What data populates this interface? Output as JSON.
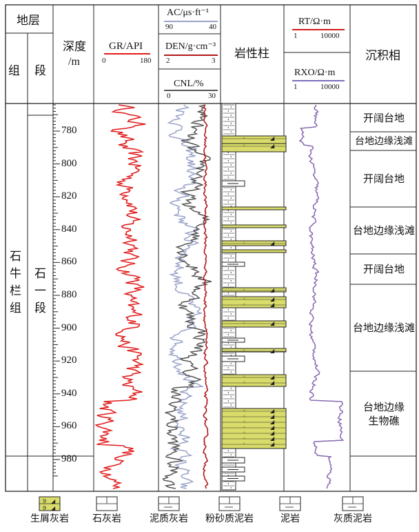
{
  "header": {
    "strata": "地层",
    "formation": "组",
    "member": "段",
    "depth_title": "深度",
    "depth_unit": "/m",
    "lithology_column": "岩性柱",
    "facies_title": "沉积相"
  },
  "tracks": {
    "gr": {
      "label": "GR/API",
      "min": "0",
      "max": "180",
      "color": "#e01b1b"
    },
    "ac": {
      "label": "AC/μs·ft⁻¹",
      "min": "90",
      "max": "40",
      "color": "#9aa3c9"
    },
    "den": {
      "label": "DEN/g·cm⁻³",
      "min": "2",
      "max": "3",
      "color": "#b01818"
    },
    "cnl": {
      "label": "CNL/%",
      "min": "0",
      "max": "30",
      "color": "#555555"
    },
    "rt": {
      "label": "RT/Ω·m",
      "min": "1",
      "max": "10000",
      "color": "#d01a1a"
    },
    "rxo": {
      "label": "RXO/Ω·m",
      "min": "1",
      "max": "10000",
      "color": "#7a6cc0"
    }
  },
  "strat": {
    "formation_name": "石牛栏组",
    "member_name": "石一段"
  },
  "depth_axis": {
    "ticks": [
      "780",
      "800",
      "820",
      "840",
      "860",
      "880",
      "900",
      "920",
      "940",
      "960",
      "980"
    ]
  },
  "facies": [
    {
      "label": "开阔台地"
    },
    {
      "label": "台地边缘浅滩"
    },
    {
      "label": "开阔台地"
    },
    {
      "label": "台地边缘浅滩"
    },
    {
      "label": "开阔台地"
    },
    {
      "label": "台地边缘浅滩"
    },
    {
      "label": "台地边缘生物礁"
    }
  ],
  "legend": [
    {
      "label": "生屑灰岩",
      "pattern": "bioclastic-limestone"
    },
    {
      "label": "石灰岩",
      "pattern": "limestone"
    },
    {
      "label": "泥质灰岩",
      "pattern": "argillaceous-limestone"
    },
    {
      "label": "粉砂质泥岩",
      "pattern": "silty-mudstone"
    },
    {
      "label": "泥岩",
      "pattern": "mudstone"
    },
    {
      "label": "灰质泥岩",
      "pattern": "calcareous-mudstone"
    }
  ],
  "colors": {
    "bioclastic_fill": "#d9dc6a",
    "grid": "#222222"
  }
}
